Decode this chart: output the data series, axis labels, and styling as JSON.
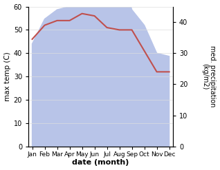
{
  "months": [
    "Jan",
    "Feb",
    "Mar",
    "Apr",
    "May",
    "Jun",
    "Jul",
    "Aug",
    "Sep",
    "Oct",
    "Nov",
    "Dec"
  ],
  "max_temp": [
    46,
    52,
    54,
    54,
    57,
    56,
    51,
    50,
    50,
    41,
    32,
    32
  ],
  "precipitation": [
    33,
    41,
    44,
    45,
    55,
    55,
    52,
    59,
    44,
    39,
    30,
    29
  ],
  "temp_color": "#c0504d",
  "precip_fill_color": "#b8c4e8",
  "temp_ylim": [
    0,
    60
  ],
  "precip_ylim": [
    0,
    45
  ],
  "xlabel": "date (month)",
  "ylabel_left": "max temp (C)",
  "ylabel_right": "med. precipitation\n(kg/m2)",
  "grid_color": "#dddddd"
}
